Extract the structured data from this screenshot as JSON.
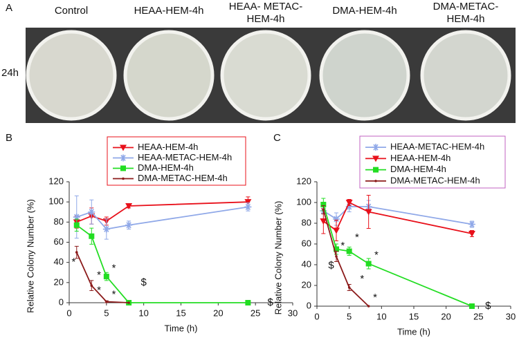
{
  "panel_a": {
    "label": "A",
    "row_label": "24h",
    "plates": [
      [
        "Control"
      ],
      [
        "HEAA-HEM-4h"
      ],
      [
        "HEAA- METAC-",
        "HEM-4h"
      ],
      [
        "DMA-HEM-4h"
      ],
      [
        "DMA-METAC-",
        "HEM-4h"
      ]
    ]
  },
  "chart_data": [
    {
      "type": "line",
      "panel": "B",
      "xlabel": "Time (h)",
      "ylabel": "Relative Colony Number (%)",
      "x": [
        1,
        3,
        5,
        8,
        24
      ],
      "xlim": [
        0,
        30
      ],
      "xticks": [
        0,
        5,
        10,
        15,
        20,
        25,
        30
      ],
      "ylim": [
        0,
        120
      ],
      "yticks": [
        0,
        20,
        40,
        60,
        80,
        100,
        120
      ],
      "series": [
        {
          "name": "HEAA-HEM-4h",
          "color": "#e8101a",
          "marker": "triangle",
          "values": [
            80,
            86,
            81,
            96,
            100
          ],
          "errors": [
            6,
            8,
            4,
            2,
            5
          ]
        },
        {
          "name": "HEAA-METAC-HEM-4h",
          "color": "#8fa8e8",
          "marker": "star",
          "values": [
            85,
            90,
            73,
            77,
            95
          ],
          "errors": [
            21,
            12,
            10,
            4,
            4
          ]
        },
        {
          "name": "DMA-HEM-4h",
          "color": "#22dd22",
          "marker": "square",
          "values": [
            77,
            66,
            26,
            0,
            0
          ],
          "errors": [
            6,
            8,
            4,
            1,
            1
          ]
        },
        {
          "name": "DMA-METAC-HEM-4h",
          "color": "#8b1a1a",
          "marker": "dot",
          "values": [
            50,
            17,
            1,
            0,
            null
          ],
          "errors": [
            6,
            5,
            1,
            0,
            null
          ]
        }
      ],
      "annotations": [
        {
          "text": "*",
          "x": 0.6,
          "y": 40
        },
        {
          "text": "*",
          "x": 4,
          "y": 27
        },
        {
          "text": "*",
          "x": 4,
          "y": 12
        },
        {
          "text": "*",
          "x": 6,
          "y": 34
        },
        {
          "text": "*",
          "x": 6,
          "y": 8
        },
        {
          "text": "$",
          "x": 10,
          "y": 20
        },
        {
          "text": "$",
          "x": 27,
          "y": 0
        }
      ]
    },
    {
      "type": "line",
      "panel": "C",
      "xlabel": "Time (h)",
      "ylabel": "Relative Colony Number (%)",
      "x": [
        1,
        3,
        5,
        8,
        24
      ],
      "xlim": [
        0,
        30
      ],
      "xticks": [
        0,
        5,
        10,
        15,
        20,
        25,
        30
      ],
      "ylim": [
        0,
        120
      ],
      "yticks": [
        0,
        20,
        40,
        60,
        80,
        100,
        120
      ],
      "series": [
        {
          "name": "HEAA-METAC-HEM-4h",
          "color": "#8fa8e8",
          "marker": "star",
          "values": [
            92,
            84,
            96,
            96,
            79
          ],
          "errors": [
            8,
            6,
            5,
            6,
            3
          ]
        },
        {
          "name": "HEAA-HEM-4h",
          "color": "#e8101a",
          "marker": "triangle",
          "values": [
            82,
            73,
            100,
            91,
            70
          ],
          "errors": [
            12,
            10,
            3,
            16,
            3
          ]
        },
        {
          "name": "DMA-HEM-4h",
          "color": "#22dd22",
          "marker": "square",
          "values": [
            98,
            55,
            53,
            41,
            0
          ],
          "errors": [
            6,
            5,
            4,
            5,
            1
          ]
        },
        {
          "name": "DMA-METAC-HEM-4h",
          "color": "#8b1a1a",
          "marker": "dot",
          "values": [
            93,
            48,
            18,
            0,
            null
          ],
          "errors": [
            4,
            5,
            3,
            0,
            null
          ]
        }
      ],
      "annotations": [
        {
          "text": "$",
          "x": 2.2,
          "y": 39
        },
        {
          "text": "*",
          "x": 4,
          "y": 58
        },
        {
          "text": "*",
          "x": 6.2,
          "y": 66
        },
        {
          "text": "*",
          "x": 9.2,
          "y": 49
        },
        {
          "text": "*",
          "x": 7,
          "y": 26
        },
        {
          "text": "*",
          "x": 9,
          "y": 8
        },
        {
          "text": "$",
          "x": 26.5,
          "y": 0
        }
      ]
    }
  ]
}
